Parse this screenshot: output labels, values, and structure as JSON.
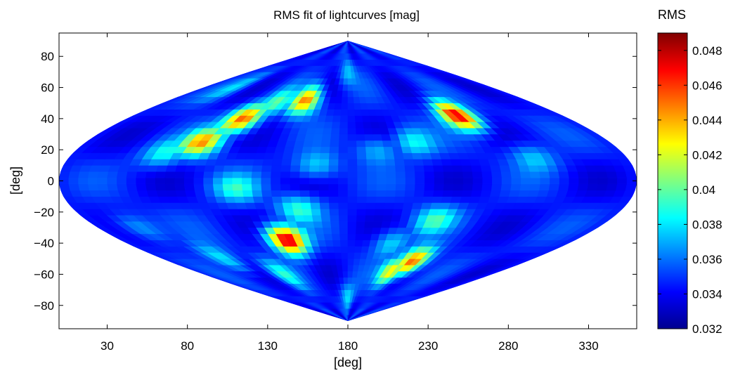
{
  "chart_data": {
    "type": "heatmap",
    "projection": "sinusoidal",
    "title": "RMS fit of lightcurves [mag]",
    "xlabel": "[deg]",
    "ylabel": "[deg]",
    "xlim": [
      0,
      360
    ],
    "ylim": [
      -95,
      95
    ],
    "x_ticks": [
      30,
      80,
      130,
      180,
      230,
      280,
      330
    ],
    "y_ticks": [
      80,
      60,
      40,
      20,
      0,
      -20,
      -40,
      -60,
      -80
    ],
    "x_tick_labels": [
      "30",
      "80",
      "130",
      "180",
      "230",
      "280",
      "330"
    ],
    "y_tick_labels": [
      "80",
      "60",
      "40",
      "20",
      "0",
      "−20",
      "−40",
      "−60",
      "−80"
    ],
    "colorbar": {
      "title": "RMS",
      "min": 0.032,
      "max": 0.049,
      "ticks": [
        0.048,
        0.046,
        0.044,
        0.042,
        0.04,
        0.038,
        0.036,
        0.034,
        0.032
      ],
      "tick_labels": [
        "0.048",
        "0.046",
        "0.044",
        "0.042",
        "0.04",
        "0.038",
        "0.036",
        "0.034",
        "0.032"
      ],
      "colormap": "jet"
    },
    "background_rms": 0.0345,
    "features": [
      {
        "lon": 95,
        "lat": 40,
        "rms": 0.0455
      },
      {
        "lon": 80,
        "lat": 25,
        "rms": 0.044
      },
      {
        "lon": 138,
        "lat": 52,
        "rms": 0.045
      },
      {
        "lon": 272,
        "lat": 42,
        "rms": 0.0475
      },
      {
        "lon": 132,
        "lat": -38,
        "rms": 0.048
      },
      {
        "lon": 245,
        "lat": -52,
        "rms": 0.046
      },
      {
        "lon": 232,
        "lat": -58,
        "rms": 0.0435
      },
      {
        "lon": 60,
        "lat": 18,
        "rms": 0.0385
      },
      {
        "lon": 110,
        "lat": 50,
        "rms": 0.0395
      },
      {
        "lon": 40,
        "lat": 60,
        "rms": 0.0375
      },
      {
        "lon": 148,
        "lat": -18,
        "rms": 0.039
      },
      {
        "lon": 110,
        "lat": -5,
        "rms": 0.0385
      },
      {
        "lon": 160,
        "lat": 10,
        "rms": 0.038
      },
      {
        "lon": 200,
        "lat": 20,
        "rms": 0.0375
      },
      {
        "lon": 225,
        "lat": 25,
        "rms": 0.0385
      },
      {
        "lon": 240,
        "lat": -25,
        "rms": 0.039
      },
      {
        "lon": 215,
        "lat": -40,
        "rms": 0.038
      },
      {
        "lon": 300,
        "lat": 15,
        "rms": 0.0375
      },
      {
        "lon": 30,
        "lat": -30,
        "rms": 0.0375
      },
      {
        "lon": 60,
        "lat": -50,
        "rms": 0.0385
      },
      {
        "lon": 100,
        "lat": -60,
        "rms": 0.0385
      },
      {
        "lon": 180,
        "lat": 70,
        "rms": 0.0375
      },
      {
        "lon": 180,
        "lat": -75,
        "rms": 0.038
      }
    ]
  }
}
